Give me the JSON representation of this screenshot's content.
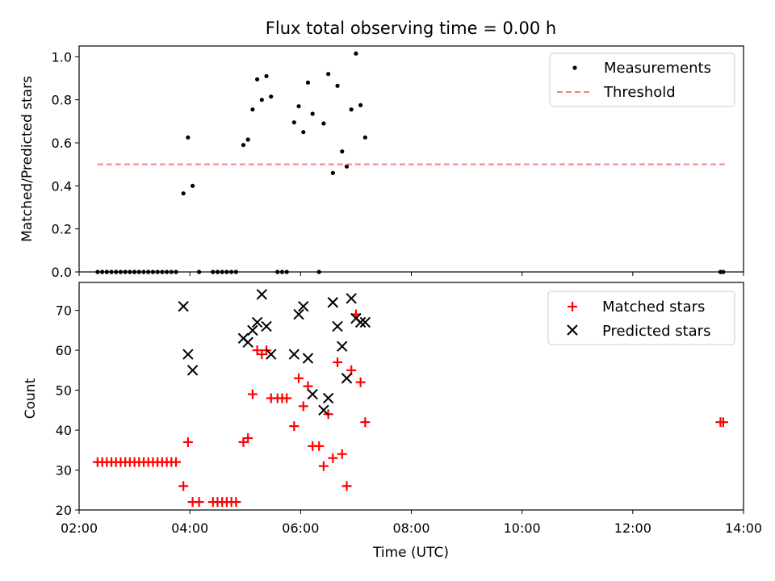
{
  "chart_data": [
    {
      "type": "scatter",
      "title": "Flux total observing time = 0.00 h",
      "xlabel": "",
      "ylabel": "Matched/Predicted stars",
      "xlim": [
        "02:00",
        "14:00"
      ],
      "ylim": [
        0,
        1.05
      ],
      "yticks": [
        "0.0",
        "0.2",
        "0.4",
        "0.6",
        "0.8",
        "1.0"
      ],
      "legend": {
        "placement": "top-right",
        "entries": [
          "Measurements",
          "Threshold"
        ]
      },
      "colors": {
        "measurements": "#000000",
        "threshold": "#f08080"
      },
      "series": [
        {
          "name": "Measurements",
          "marker": "dot",
          "points": [
            [
              "02:20",
              0.0
            ],
            [
              "02:25",
              0.0
            ],
            [
              "02:30",
              0.0
            ],
            [
              "02:35",
              0.0
            ],
            [
              "02:40",
              0.0
            ],
            [
              "02:45",
              0.0
            ],
            [
              "02:50",
              0.0
            ],
            [
              "02:55",
              0.0
            ],
            [
              "03:00",
              0.0
            ],
            [
              "03:05",
              0.0
            ],
            [
              "03:10",
              0.0
            ],
            [
              "03:15",
              0.0
            ],
            [
              "03:20",
              0.0
            ],
            [
              "03:25",
              0.0
            ],
            [
              "03:30",
              0.0
            ],
            [
              "03:35",
              0.0
            ],
            [
              "03:40",
              0.0
            ],
            [
              "03:45",
              0.0
            ],
            [
              "03:53",
              0.365
            ],
            [
              "03:58",
              0.625
            ],
            [
              "04:03",
              0.4
            ],
            [
              "04:10",
              0.0
            ],
            [
              "04:25",
              0.0
            ],
            [
              "04:30",
              0.0
            ],
            [
              "04:35",
              0.0
            ],
            [
              "04:40",
              0.0
            ],
            [
              "04:45",
              0.0
            ],
            [
              "04:50",
              0.0
            ],
            [
              "04:58",
              0.59
            ],
            [
              "05:03",
              0.615
            ],
            [
              "05:08",
              0.755
            ],
            [
              "05:13",
              0.895
            ],
            [
              "05:18",
              0.8
            ],
            [
              "05:23",
              0.91
            ],
            [
              "05:28",
              0.815
            ],
            [
              "05:35",
              0.0
            ],
            [
              "05:40",
              0.0
            ],
            [
              "05:45",
              0.0
            ],
            [
              "05:53",
              0.695
            ],
            [
              "05:58",
              0.77
            ],
            [
              "06:03",
              0.65
            ],
            [
              "06:08",
              0.88
            ],
            [
              "06:13",
              0.735
            ],
            [
              "06:20",
              0.0
            ],
            [
              "06:25",
              0.69
            ],
            [
              "06:30",
              0.92
            ],
            [
              "06:35",
              0.46
            ],
            [
              "06:40",
              0.865
            ],
            [
              "06:45",
              0.56
            ],
            [
              "06:50",
              0.49
            ],
            [
              "06:55",
              0.755
            ],
            [
              "07:00",
              1.015
            ],
            [
              "07:05",
              0.775
            ],
            [
              "07:10",
              0.625
            ],
            [
              "13:35",
              0.0
            ],
            [
              "13:38",
              0.0
            ]
          ]
        },
        {
          "name": "Threshold",
          "marker": "dashed-line",
          "points": [
            [
              "02:20",
              0.5
            ],
            [
              "13:40",
              0.5
            ]
          ]
        }
      ]
    },
    {
      "type": "scatter",
      "title": "",
      "xlabel": "Time (UTC)",
      "ylabel": "Count",
      "xlim": [
        "02:00",
        "14:00"
      ],
      "ylim": [
        20,
        77
      ],
      "xticks": [
        "02:00",
        "04:00",
        "06:00",
        "08:00",
        "10:00",
        "12:00",
        "14:00"
      ],
      "yticks": [
        "20",
        "30",
        "40",
        "50",
        "60",
        "70"
      ],
      "legend": {
        "placement": "top-right",
        "entries": [
          "Matched stars",
          "Predicted stars"
        ]
      },
      "colors": {
        "matched": "#ff0000",
        "predicted": "#000000"
      },
      "series": [
        {
          "name": "Matched stars",
          "marker": "plus",
          "points": [
            [
              "02:20",
              32
            ],
            [
              "02:25",
              32
            ],
            [
              "02:30",
              32
            ],
            [
              "02:35",
              32
            ],
            [
              "02:40",
              32
            ],
            [
              "02:45",
              32
            ],
            [
              "02:50",
              32
            ],
            [
              "02:55",
              32
            ],
            [
              "03:00",
              32
            ],
            [
              "03:05",
              32
            ],
            [
              "03:10",
              32
            ],
            [
              "03:15",
              32
            ],
            [
              "03:20",
              32
            ],
            [
              "03:25",
              32
            ],
            [
              "03:30",
              32
            ],
            [
              "03:35",
              32
            ],
            [
              "03:40",
              32
            ],
            [
              "03:45",
              32
            ],
            [
              "03:53",
              26
            ],
            [
              "03:58",
              37
            ],
            [
              "04:03",
              22
            ],
            [
              "04:10",
              22
            ],
            [
              "04:25",
              22
            ],
            [
              "04:30",
              22
            ],
            [
              "04:35",
              22
            ],
            [
              "04:40",
              22
            ],
            [
              "04:45",
              22
            ],
            [
              "04:50",
              22
            ],
            [
              "04:58",
              37
            ],
            [
              "05:03",
              38
            ],
            [
              "05:08",
              49
            ],
            [
              "05:13",
              60
            ],
            [
              "05:18",
              59
            ],
            [
              "05:23",
              60
            ],
            [
              "05:28",
              48
            ],
            [
              "05:35",
              48
            ],
            [
              "05:40",
              48
            ],
            [
              "05:45",
              48
            ],
            [
              "05:53",
              41
            ],
            [
              "05:58",
              53
            ],
            [
              "06:03",
              46
            ],
            [
              "06:08",
              51
            ],
            [
              "06:13",
              36
            ],
            [
              "06:20",
              36
            ],
            [
              "06:25",
              31
            ],
            [
              "06:30",
              44
            ],
            [
              "06:35",
              33
            ],
            [
              "06:40",
              57
            ],
            [
              "06:45",
              34
            ],
            [
              "06:50",
              26
            ],
            [
              "06:55",
              55
            ],
            [
              "07:00",
              69
            ],
            [
              "07:05",
              52
            ],
            [
              "07:10",
              42
            ],
            [
              "13:35",
              42
            ],
            [
              "13:38",
              42
            ]
          ]
        },
        {
          "name": "Predicted stars",
          "marker": "x",
          "points": [
            [
              "03:53",
              71
            ],
            [
              "03:58",
              59
            ],
            [
              "04:03",
              55
            ],
            [
              "04:58",
              63
            ],
            [
              "05:03",
              62
            ],
            [
              "05:08",
              65
            ],
            [
              "05:13",
              67
            ],
            [
              "05:18",
              74
            ],
            [
              "05:23",
              66
            ],
            [
              "05:28",
              59
            ],
            [
              "05:53",
              59
            ],
            [
              "05:58",
              69
            ],
            [
              "06:03",
              71
            ],
            [
              "06:08",
              58
            ],
            [
              "06:13",
              49
            ],
            [
              "06:25",
              45
            ],
            [
              "06:30",
              48
            ],
            [
              "06:35",
              72
            ],
            [
              "06:40",
              66
            ],
            [
              "06:45",
              61
            ],
            [
              "06:50",
              53
            ],
            [
              "06:55",
              73
            ],
            [
              "07:00",
              68
            ],
            [
              "07:05",
              67
            ],
            [
              "07:10",
              67
            ]
          ]
        }
      ]
    }
  ]
}
